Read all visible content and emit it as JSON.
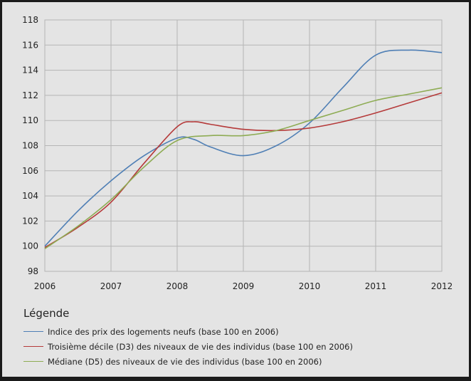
{
  "chart_data": {
    "type": "line",
    "x_ticks": [
      "2006",
      "2007",
      "2008",
      "2009",
      "2010",
      "2011",
      "2012"
    ],
    "y_ticks": [
      "98",
      "100",
      "102",
      "104",
      "106",
      "108",
      "110",
      "112",
      "114",
      "116",
      "118"
    ],
    "xlim": [
      2006,
      2012
    ],
    "ylim": [
      98,
      118
    ],
    "grid": true,
    "legend_title": "Légende",
    "series": [
      {
        "name": "Indice des prix des logements neufs (base 100 en 2006)",
        "color": "#4f7fb5",
        "x": [
          2006,
          2006.5,
          2007,
          2007.5,
          2008,
          2008.25,
          2008.5,
          2009,
          2009.5,
          2010,
          2010.5,
          2011,
          2011.5,
          2012
        ],
        "y": [
          100.0,
          102.8,
          105.2,
          107.2,
          108.6,
          108.5,
          107.9,
          107.2,
          108.0,
          109.8,
          112.6,
          115.2,
          115.6,
          115.4
        ]
      },
      {
        "name": "Troisième décile (D3) des niveaux de vie des individus (base 100 en 2006)",
        "color": "#b53a3a",
        "x": [
          2006,
          2006.5,
          2007,
          2007.5,
          2008,
          2008.25,
          2008.5,
          2009,
          2009.5,
          2010,
          2010.5,
          2011,
          2011.5,
          2012
        ],
        "y": [
          99.9,
          101.5,
          103.5,
          106.6,
          109.5,
          109.9,
          109.7,
          109.3,
          109.2,
          109.4,
          109.9,
          110.6,
          111.4,
          112.2
        ]
      },
      {
        "name": "Médiane (D5) des niveaux de vie des individus (base 100 en 2006)",
        "color": "#8eac54",
        "x": [
          2006,
          2006.5,
          2007,
          2007.5,
          2008,
          2008.5,
          2009,
          2009.5,
          2010,
          2010.5,
          2011,
          2011.5,
          2012
        ],
        "y": [
          99.8,
          101.6,
          103.7,
          106.3,
          108.4,
          108.8,
          108.8,
          109.2,
          110.0,
          110.8,
          111.6,
          112.1,
          112.6
        ]
      }
    ]
  }
}
